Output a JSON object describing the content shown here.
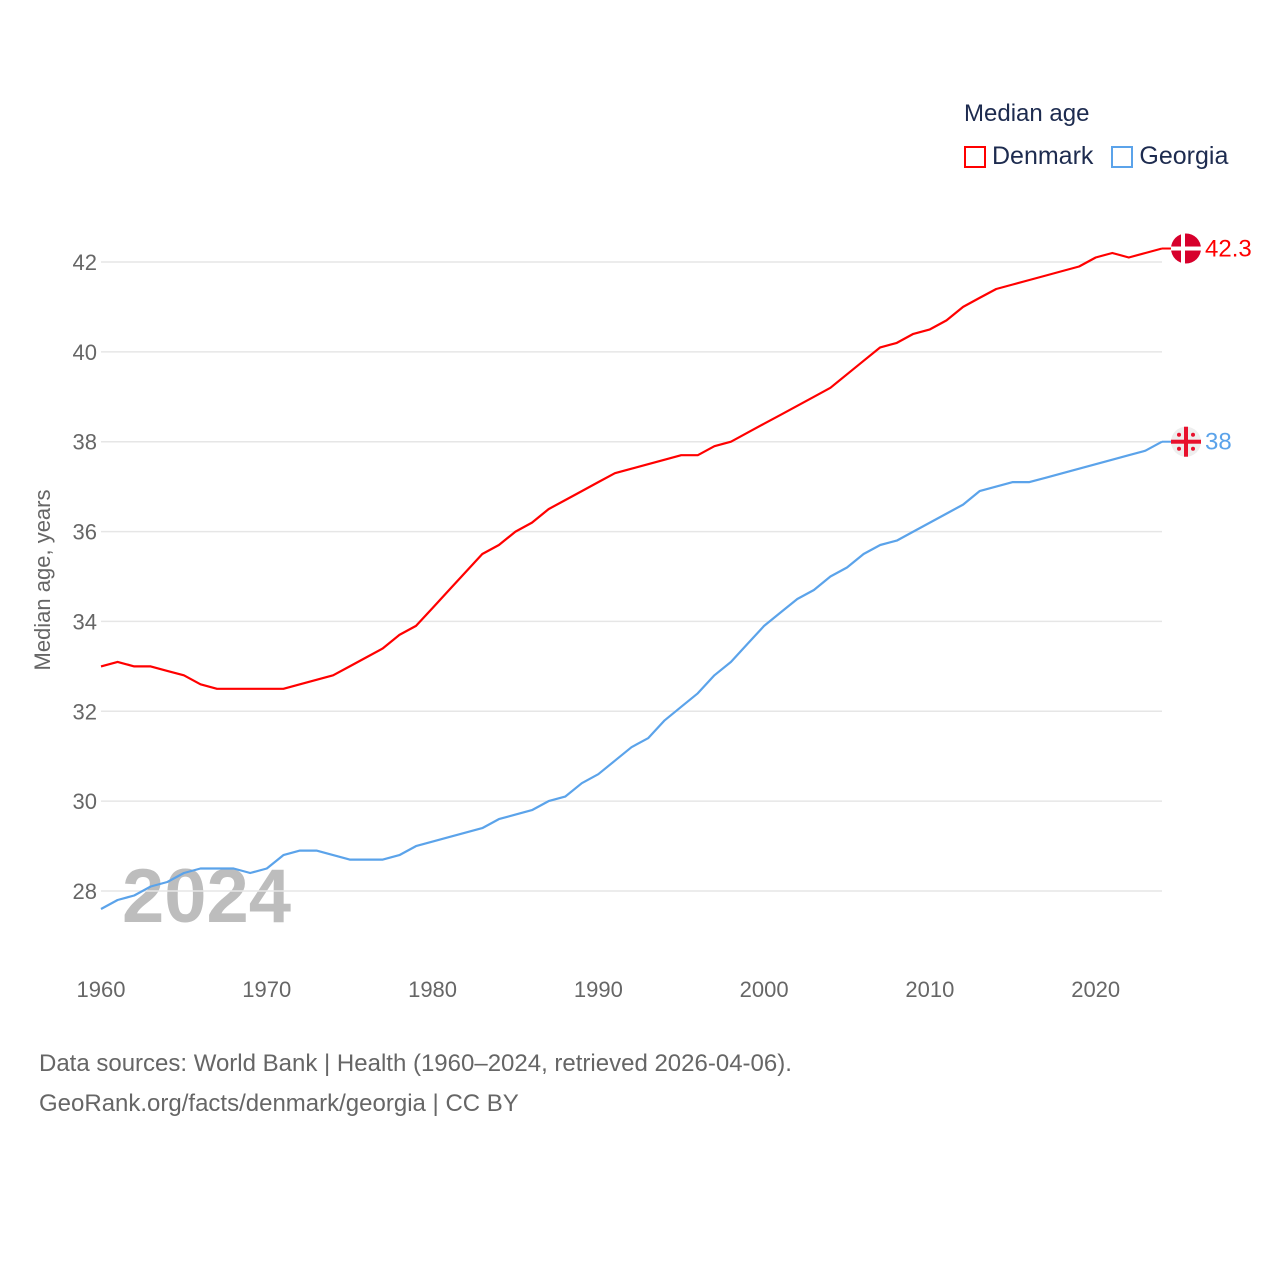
{
  "chart_data": {
    "type": "line",
    "ylabel": "Median age, years",
    "xlabel": "",
    "ylim": [
      27,
      43.2
    ],
    "xlim": [
      1960,
      2024
    ],
    "yticks": [
      28,
      30,
      32,
      34,
      36,
      38,
      40,
      42
    ],
    "xticks": [
      1960,
      1970,
      1980,
      1990,
      2000,
      2010,
      2020
    ],
    "grid": true,
    "legend_title": "Median age",
    "legend_position": "top-right",
    "year_watermark": "2024",
    "x_start": 1960,
    "series": [
      {
        "name": "Denmark",
        "color": "#ff0000",
        "end_label": "42.3",
        "flag": "denmark-flag",
        "values": [
          33.0,
          33.1,
          33.0,
          33.0,
          32.9,
          32.8,
          32.6,
          32.5,
          32.5,
          32.5,
          32.5,
          32.5,
          32.6,
          32.7,
          32.8,
          33.0,
          33.2,
          33.4,
          33.7,
          33.9,
          34.3,
          34.7,
          35.1,
          35.5,
          35.7,
          36.0,
          36.2,
          36.5,
          36.7,
          36.9,
          37.1,
          37.3,
          37.4,
          37.5,
          37.6,
          37.7,
          37.7,
          37.9,
          38.0,
          38.2,
          38.4,
          38.6,
          38.8,
          39.0,
          39.2,
          39.5,
          39.8,
          40.1,
          40.2,
          40.4,
          40.5,
          40.7,
          41.0,
          41.2,
          41.4,
          41.5,
          41.6,
          41.7,
          41.8,
          41.9,
          42.1,
          42.2,
          42.1,
          42.2,
          42.3
        ]
      },
      {
        "name": "Georgia",
        "color": "#5ba3ea",
        "end_label": "38",
        "flag": "georgia-flag",
        "values": [
          27.6,
          27.8,
          27.9,
          28.1,
          28.2,
          28.4,
          28.5,
          28.5,
          28.5,
          28.4,
          28.5,
          28.8,
          28.9,
          28.9,
          28.8,
          28.7,
          28.7,
          28.7,
          28.8,
          29.0,
          29.1,
          29.2,
          29.3,
          29.4,
          29.6,
          29.7,
          29.8,
          30.0,
          30.1,
          30.4,
          30.6,
          30.9,
          31.2,
          31.4,
          31.8,
          32.1,
          32.4,
          32.8,
          33.1,
          33.5,
          33.9,
          34.2,
          34.5,
          34.7,
          35.0,
          35.2,
          35.5,
          35.7,
          35.8,
          36.0,
          36.2,
          36.4,
          36.6,
          36.9,
          37.0,
          37.1,
          37.1,
          37.2,
          37.3,
          37.4,
          37.5,
          37.6,
          37.7,
          37.8,
          38.0
        ]
      }
    ]
  },
  "footer": {
    "line1": "Data sources: World Bank | Health (1960–2024, retrieved 2026-04-06).",
    "line2": "GeoRank.org/facts/denmark/georgia | CC BY"
  }
}
